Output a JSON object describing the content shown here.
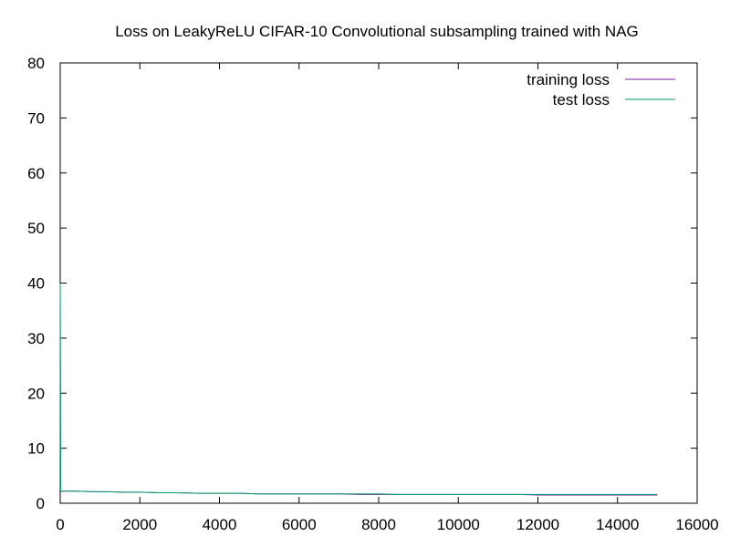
{
  "chart_data": {
    "type": "line",
    "title": "Loss on LeakyReLU CIFAR-10 Convolutional subsampling trained with NAG",
    "xlabel": "",
    "ylabel": "",
    "xlim": [
      0,
      16000
    ],
    "ylim": [
      0,
      80
    ],
    "x_ticks": [
      0,
      2000,
      4000,
      6000,
      8000,
      10000,
      12000,
      14000,
      16000
    ],
    "y_ticks": [
      0,
      10,
      20,
      30,
      40,
      50,
      60,
      70,
      80
    ],
    "grid": false,
    "legend_position": "top-right",
    "series": [
      {
        "name": "training loss",
        "color": "#7b1fa2",
        "x": [
          0,
          10,
          20,
          30,
          40,
          60,
          100,
          200,
          400,
          800,
          1200,
          1600,
          2000,
          2500,
          3000,
          3500,
          4000,
          4500,
          5000,
          5500,
          6000,
          6500,
          7000,
          7500,
          8000,
          8500,
          9000,
          9500,
          10000,
          10500,
          11000,
          11500,
          12000,
          12500,
          13000,
          13500,
          14000,
          14500,
          15000
        ],
        "y": [
          40,
          2.3,
          2.2,
          2.2,
          2.2,
          2.2,
          2.2,
          2.2,
          2.2,
          2.1,
          2.1,
          2.0,
          2.0,
          1.9,
          1.9,
          1.8,
          1.8,
          1.8,
          1.7,
          1.7,
          1.7,
          1.7,
          1.7,
          1.6,
          1.6,
          1.6,
          1.6,
          1.6,
          1.6,
          1.6,
          1.6,
          1.6,
          1.5,
          1.5,
          1.5,
          1.5,
          1.5,
          1.5,
          1.5
        ]
      },
      {
        "name": "test loss",
        "color": "#009e73",
        "x": [
          0,
          10,
          20,
          30,
          40,
          60,
          100,
          200,
          400,
          800,
          1200,
          1600,
          2000,
          2500,
          3000,
          3500,
          4000,
          4500,
          5000,
          5500,
          6000,
          6500,
          7000,
          7500,
          8000,
          8500,
          9000,
          9500,
          10000,
          10500,
          11000,
          11500,
          12000,
          12500,
          13000,
          13500,
          14000,
          14500,
          15000
        ],
        "y": [
          40,
          2.3,
          2.2,
          2.2,
          2.2,
          2.2,
          2.2,
          2.2,
          2.2,
          2.1,
          2.1,
          2.0,
          2.0,
          1.9,
          1.9,
          1.8,
          1.8,
          1.8,
          1.7,
          1.7,
          1.7,
          1.7,
          1.7,
          1.7,
          1.7,
          1.6,
          1.6,
          1.6,
          1.6,
          1.6,
          1.6,
          1.6,
          1.6,
          1.6,
          1.6,
          1.6,
          1.6,
          1.6,
          1.6
        ]
      }
    ]
  }
}
